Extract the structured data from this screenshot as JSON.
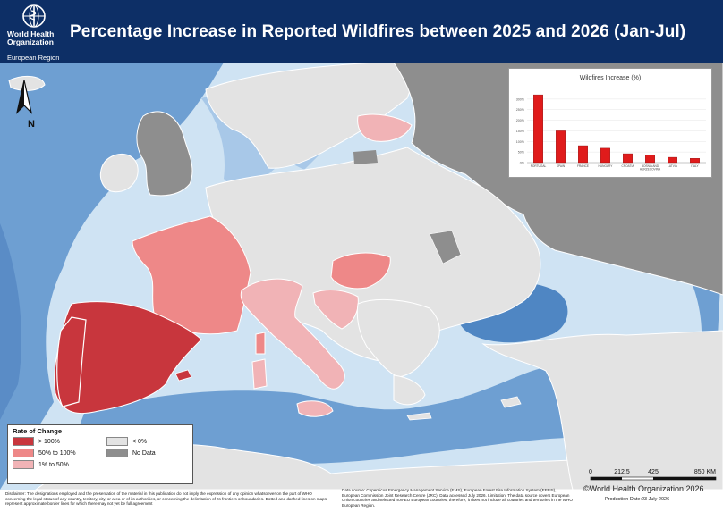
{
  "header": {
    "org_line1": "World Health",
    "org_line2": "Organization",
    "org_line3": "European Region",
    "title": "Percentage Increase in Reported Wildfires between 2025 and 2026 (Jan-Jul)"
  },
  "north_label": "N",
  "colors": {
    "header_bg": "#0d2f66",
    "gt100": "#c8363d",
    "p50_100": "#ee8888",
    "p1_50": "#f1b3b6",
    "lt0": "#e3e3e3",
    "no_data": "#8e8e8e",
    "sea_light": "#cfe3f3",
    "sea_deep": "#5f95cc"
  },
  "legend": {
    "title": "Rate of Change",
    "items": [
      {
        "label": "> 100%",
        "color": "#c8363d"
      },
      {
        "label": "50% to 100%",
        "color": "#ee8888"
      },
      {
        "label": "1% to 50%",
        "color": "#f1b3b6"
      },
      {
        "label": "< 0%",
        "color": "#e3e3e3"
      },
      {
        "label": "No Data",
        "color": "#8e8e8e"
      }
    ]
  },
  "chart_data": {
    "type": "bar",
    "title": "Wildfires Increase (%)",
    "categories": [
      "PORTUGAL",
      "SPAIN",
      "FRANCE",
      "HUNGARY",
      "CROATIA",
      "BOSNIA AND HERZEGOVINA",
      "LATVIA",
      "ITALY"
    ],
    "values": [
      320,
      150,
      80,
      68,
      42,
      35,
      25,
      20
    ],
    "yticks": [
      "0%",
      "50%",
      "100%",
      "150%",
      "200%",
      "250%",
      "300%"
    ],
    "ylim": [
      0,
      350
    ],
    "bar_color": "#e01b1b"
  },
  "scale_bar": {
    "ticks": [
      "0",
      "212.5",
      "425",
      "850 KM"
    ]
  },
  "footer": {
    "disclaimer": "Disclaimer: The designations employed and the presentation of the material in this publication do not imply the expression of any opinion whatsoever on the part of WHO concerning the legal status of any country, territory, city, or area or of its authorities, or concerning the delimitation of its frontiers or boundaries. Dotted and dashed lines on maps represent approximate border lines for which there may not yet be full agreement",
    "source": "Data source: Copernicus Emergency Management Service (EMS), European Forest Fire Information System (EFFIS), European Commission Joint Research Centre (JRC). Data accessed July 2026. Limitation: The data source covers European Union countries and selected non-EU European countries; therefore, it does not include all countries and territories in the WHO European Region.",
    "copyright": "©World Health Organization 2026",
    "production_date": "Production Date:23 July 2026"
  }
}
